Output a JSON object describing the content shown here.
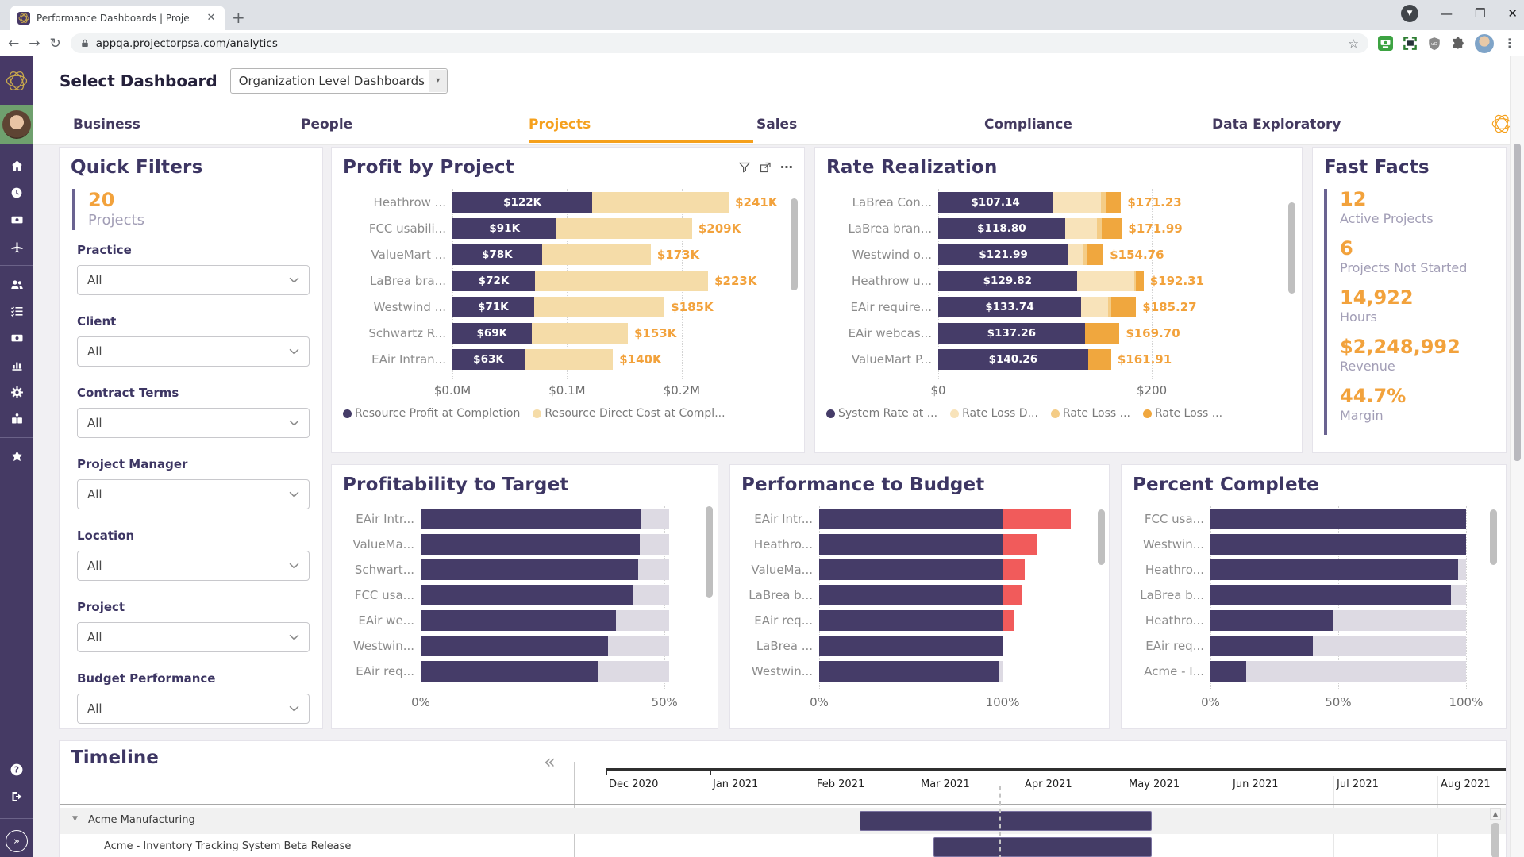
{
  "browser": {
    "tab_title": "Performance Dashboards | Proje",
    "url": "appqa.projectorpsa.com/analytics",
    "extension_icons": [
      "roboform-icon",
      "screen-capture-icon",
      "ublock-shield-icon",
      "puzzle-extension-icon"
    ]
  },
  "header": {
    "title": "Select Dashboard",
    "dropdown_value": "Organization Level Dashboards"
  },
  "nav": {
    "tabs": [
      {
        "label": "Business",
        "active": false
      },
      {
        "label": "People",
        "active": false
      },
      {
        "label": "Projects",
        "active": true
      },
      {
        "label": "Sales",
        "active": false
      },
      {
        "label": "Compliance",
        "active": false
      },
      {
        "label": "Data Exploratory",
        "active": false
      }
    ]
  },
  "sidebar": {
    "icons": [
      "home",
      "clock",
      "expenses",
      "travel",
      "divider",
      "users",
      "tasks",
      "billing",
      "reports",
      "settings",
      "modules",
      "divider",
      "favorites"
    ],
    "bottom_icons": [
      "help",
      "logout"
    ],
    "expand_label": "»"
  },
  "quick_filters": {
    "title": "Quick Filters",
    "kpi_value": "20",
    "kpi_label": "Projects",
    "filters": [
      {
        "label": "Practice",
        "value": "All"
      },
      {
        "label": "Client",
        "value": "All"
      },
      {
        "label": "Contract Terms",
        "value": "All"
      },
      {
        "label": "Project Manager",
        "value": "All"
      },
      {
        "label": "Location",
        "value": "All"
      },
      {
        "label": "Project",
        "value": "All"
      },
      {
        "label": "Budget Performance",
        "value": "All"
      }
    ]
  },
  "fast_facts": {
    "title": "Fast Facts",
    "stats": [
      {
        "value": "12",
        "label": "Active Projects"
      },
      {
        "value": "6",
        "label": "Projects Not Started"
      },
      {
        "value": "14,922",
        "label": "Hours"
      },
      {
        "value": "$2,248,992",
        "label": "Revenue"
      },
      {
        "value": "44.7%",
        "label": "Margin"
      }
    ]
  },
  "chart_data": [
    {
      "id": "profit_by_project",
      "type": "bar",
      "title": "Profit by Project",
      "orientation": "horizontal",
      "categories": [
        "Heathrow ...",
        "FCC usabili...",
        "ValueMart ...",
        "LaBrea bra...",
        "Westwind ...",
        "Schwartz R...",
        "EAir Intran..."
      ],
      "series": [
        {
          "name": "Resource Profit at Completion",
          "color": "#453C68",
          "values": [
            122,
            91,
            78,
            72,
            71,
            69,
            63
          ]
        },
        {
          "name": "Resource Direct Cost at Completion",
          "color": "#F5DCA8",
          "values": [
            119,
            118,
            95,
            151,
            114,
            84,
            77
          ]
        }
      ],
      "bar_labels": [
        "$122K",
        "$91K",
        "$78K",
        "$72K",
        "$71K",
        "$69K",
        "$63K"
      ],
      "total_labels": [
        "$241K",
        "$209K",
        "$173K",
        "$223K",
        "$185K",
        "$153K",
        "$140K"
      ],
      "unit": "thousand USD",
      "x_max": 297,
      "ticks": [
        {
          "label": "$0.0M",
          "value": 0
        },
        {
          "label": "$0.1M",
          "value": 100
        },
        {
          "label": "$0.2M",
          "value": 200
        }
      ],
      "legend": [
        {
          "label": "Resource Profit at Completion",
          "color": "#453C68"
        },
        {
          "label": "Resource Direct Cost at Compl...",
          "color": "#F5DCA8"
        }
      ]
    },
    {
      "id": "rate_realization",
      "type": "bar",
      "title": "Rate Realization",
      "orientation": "horizontal",
      "categories": [
        "LaBrea Con...",
        "LaBrea bran...",
        "Westwind o...",
        "Heathrow u...",
        "EAir require...",
        "EAir webcas...",
        "ValueMart P..."
      ],
      "series": [
        {
          "name": "System Rate at ...",
          "color": "#453C68",
          "values": [
            107.14,
            118.8,
            121.99,
            129.82,
            133.74,
            137.26,
            140.26
          ]
        },
        {
          "name": "Rate Loss D...",
          "color": "#F8E3BA",
          "values": [
            45,
            30,
            13,
            54,
            25,
            0,
            0
          ]
        },
        {
          "name": "Rate Loss ...",
          "color": "#F4CC86",
          "values": [
            5,
            4,
            3.7,
            1.5,
            3,
            0,
            0
          ]
        },
        {
          "name": "Rate Loss ...",
          "color": "#F0A73E",
          "values": [
            14.09,
            19.19,
            16.07,
            6.99,
            23.53,
            32.44,
            21.65
          ]
        }
      ],
      "bar_labels": [
        "$107.14",
        "$118.80",
        "$121.99",
        "$129.82",
        "$133.74",
        "$137.26",
        "$140.26"
      ],
      "total_labels": [
        "$171.23",
        "$171.99",
        "$154.76",
        "$192.31",
        "$185.27",
        "$169.70",
        "$161.91"
      ],
      "unit": "USD per hour",
      "x_max": 330,
      "ticks": [
        {
          "label": "$0",
          "value": 0
        },
        {
          "label": "$200",
          "value": 200
        }
      ],
      "legend": [
        {
          "label": "System Rate at ...",
          "color": "#453C68"
        },
        {
          "label": "Rate Loss D...",
          "color": "#F8E3BA"
        },
        {
          "label": "Rate Loss ...",
          "color": "#F4CC86"
        },
        {
          "label": "Rate Loss ...",
          "color": "#F0A73E"
        }
      ]
    },
    {
      "id": "profitability_to_target",
      "type": "bar",
      "title": "Profitability to Target",
      "orientation": "horizontal",
      "categories": [
        "EAir Intr...",
        "ValueMa...",
        "Schwart...",
        "FCC usa...",
        "EAir we...",
        "Westwin...",
        "EAir req..."
      ],
      "values": [
        45.3,
        45.0,
        44.6,
        43.5,
        40.1,
        38.4,
        36.4
      ],
      "unit": "percent",
      "track": 51,
      "x_max": 56,
      "ticks": [
        {
          "label": "0%",
          "value": 0
        },
        {
          "label": "50%",
          "value": 50
        }
      ]
    },
    {
      "id": "performance_to_budget",
      "type": "bar",
      "title": "Performance to Budget",
      "orientation": "horizontal",
      "categories": [
        "EAir Intr...",
        "Heathro...",
        "ValueMa...",
        "LaBrea b...",
        "EAir req...",
        "LaBrea ...",
        "Westwin..."
      ],
      "values": [
        137,
        119,
        112,
        111,
        106,
        100,
        98
      ],
      "unit": "percent",
      "track": 100,
      "over_from": 100,
      "over_color": "#F15B5B",
      "x_max": 145,
      "ticks": [
        {
          "label": "0%",
          "value": 0
        },
        {
          "label": "100%",
          "value": 100
        }
      ]
    },
    {
      "id": "percent_complete",
      "type": "bar",
      "title": "Percent Complete",
      "orientation": "horizontal",
      "categories": [
        "FCC usa...",
        "Westwin...",
        "Heathro...",
        "LaBrea b...",
        "Heathro...",
        "EAir req...",
        "Acme - I..."
      ],
      "values": [
        100,
        100,
        97,
        94,
        48,
        40,
        14
      ],
      "unit": "percent",
      "track": 100,
      "x_max": 105,
      "ticks": [
        {
          "label": "0%",
          "value": 0
        },
        {
          "label": "50%",
          "value": 50
        },
        {
          "label": "100%",
          "value": 100
        }
      ]
    },
    {
      "id": "timeline",
      "type": "gantt",
      "title": "Timeline",
      "collapse_label": "«",
      "months": [
        "Dec 2020",
        "Jan 2021",
        "Feb 2021",
        "Mar 2021",
        "Apr 2021",
        "May 2021",
        "Jun 2021",
        "Jul 2021",
        "Aug 2021"
      ],
      "rows": [
        {
          "label": "Acme Manufacturing",
          "group": true,
          "start": 2.44,
          "end": 5.25
        },
        {
          "label": "Acme - Inventory Tracking System Beta Release",
          "group": false,
          "start": 3.15,
          "end": 5.25
        }
      ],
      "today": 3.79
    }
  ],
  "colors": {
    "accent_orange": "#F2A23C",
    "active_tab_orange": "#F5A01C",
    "bar_purple": "#453C68",
    "bar_tan": "#F5DCA8",
    "over_red": "#F15B5B",
    "track_gray": "#DDDAE3",
    "sidebar_purple": "#453A64",
    "title_purple": "#3D3663"
  }
}
